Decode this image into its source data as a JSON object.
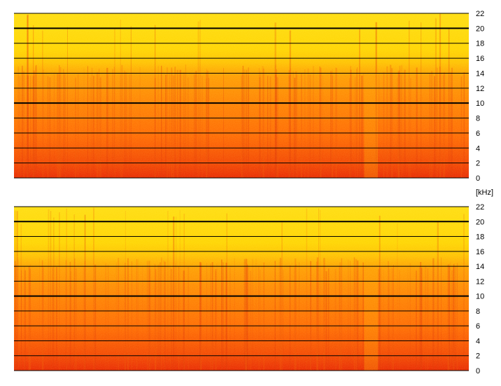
{
  "chart_data": [
    {
      "type": "heatmap",
      "name": "spectrogram-channel-1",
      "y_ticks": [
        0,
        2,
        4,
        6,
        8,
        10,
        12,
        14,
        16,
        18,
        20,
        22
      ],
      "ylim": [
        0,
        22
      ],
      "grid": true,
      "colormap": [
        "#ffd800",
        "#ffb300",
        "#ff8a00",
        "#ff5a00",
        "#e82a00"
      ],
      "features": {
        "band_top_bright_above": 16,
        "dense_energy_below": 15,
        "quiet_region": [
          0.77,
          0.8
        ]
      }
    },
    {
      "type": "heatmap",
      "name": "spectrogram-channel-2",
      "y_ticks": [
        0,
        2,
        4,
        6,
        8,
        10,
        12,
        14,
        16,
        18,
        20,
        22
      ],
      "ylim": [
        0,
        22
      ],
      "grid": true,
      "colormap": [
        "#ffd800",
        "#ffb300",
        "#ff8a00",
        "#ff5a00",
        "#e82a00"
      ],
      "features": {
        "band_top_bright_above": 16,
        "dense_energy_below": 15,
        "quiet_region": [
          0.77,
          0.8
        ]
      }
    }
  ],
  "y_unit_label": "[kHz]"
}
